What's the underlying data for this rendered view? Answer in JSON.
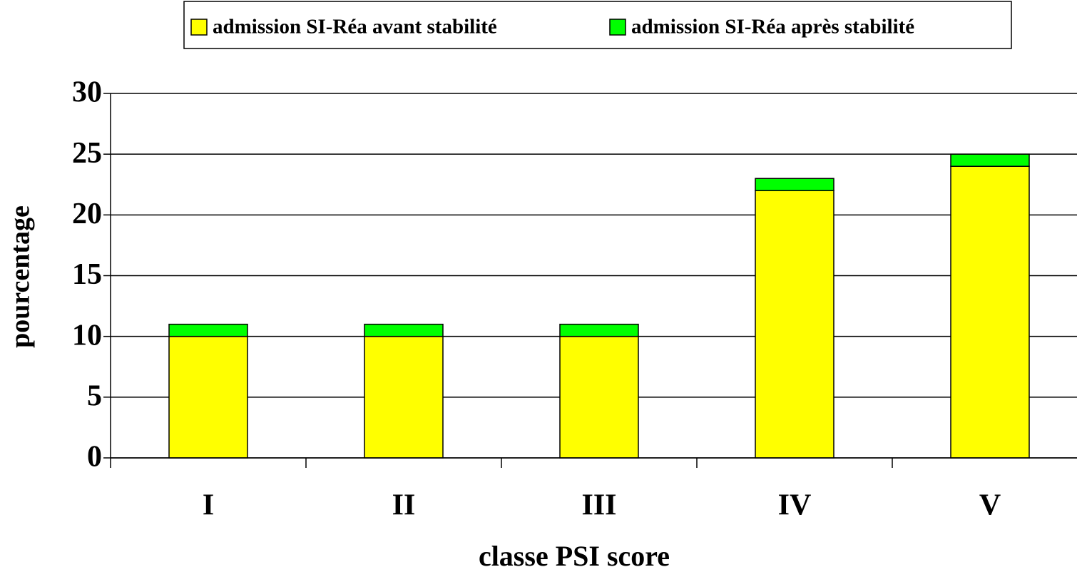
{
  "chart_data": {
    "type": "stacked_bar",
    "categories": [
      "I",
      "II",
      "III",
      "IV",
      "V"
    ],
    "series": [
      {
        "name": "admission SI-Réa avant stabilité",
        "color": "#ffff00",
        "values": [
          10,
          10,
          10,
          22,
          24
        ]
      },
      {
        "name": "admission SI-Réa après stabilité",
        "color": "#00ff00",
        "values": [
          1,
          1,
          1,
          1,
          1
        ]
      }
    ],
    "x_label": "classe PSI score",
    "y_label": "pourcentage",
    "ylim": [
      0,
      30
    ],
    "yticks": [
      0,
      5,
      10,
      15,
      20,
      25,
      30
    ],
    "grid": true,
    "legend": "top"
  }
}
